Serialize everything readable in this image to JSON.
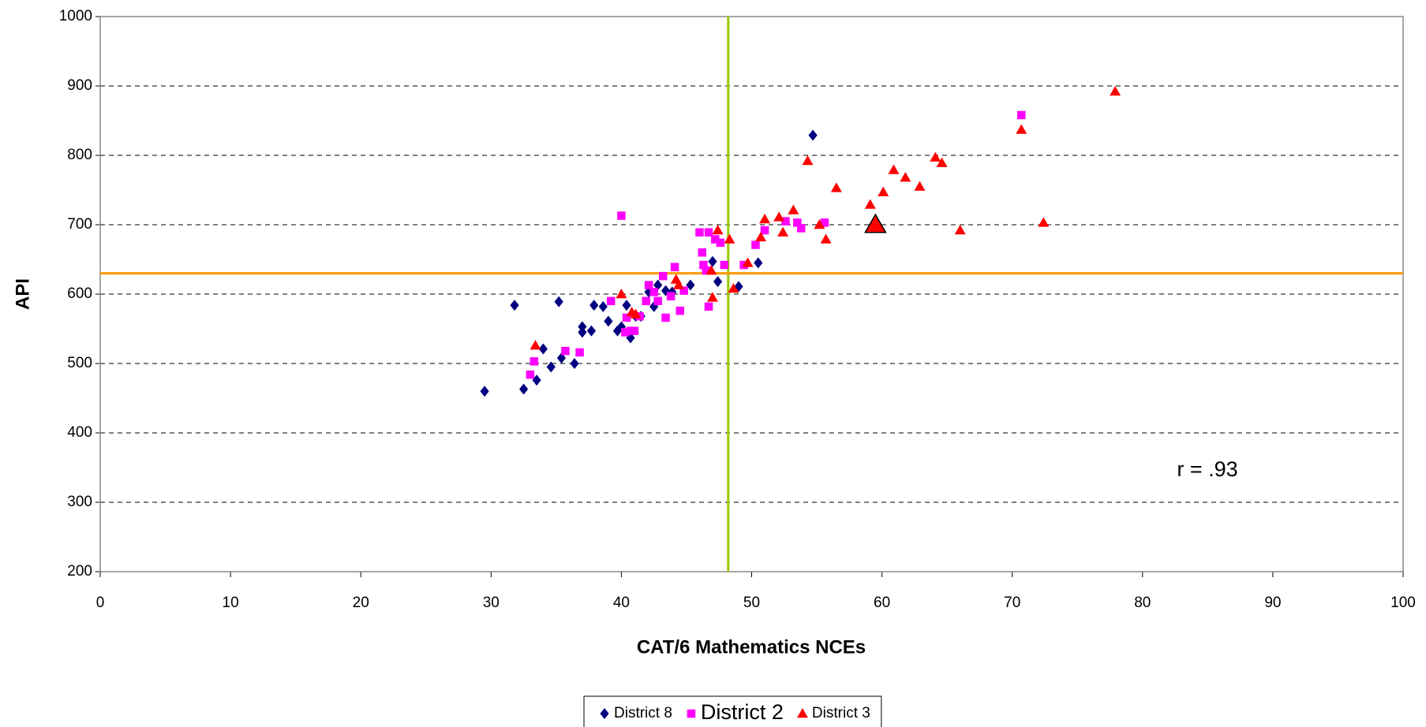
{
  "chart_data": {
    "type": "scatter",
    "xlabel": "CAT/6 Mathematics NCEs",
    "ylabel": "API",
    "annotation": "r = .93",
    "xlim": [
      0,
      100
    ],
    "xticks": [
      0,
      10,
      20,
      30,
      40,
      50,
      60,
      70,
      80,
      90,
      100
    ],
    "ylim": [
      200,
      1000
    ],
    "yticks": [
      200,
      300,
      400,
      500,
      600,
      700,
      800,
      900,
      1000
    ],
    "grid": true,
    "legend": "bottom",
    "reference_lines": {
      "x": 48.2,
      "x_color": "#99cc00",
      "y": 630,
      "y_color": "#ff9900"
    },
    "series": [
      {
        "name": "District 8",
        "marker": "diamond",
        "color": "#000080",
        "x": [
          29.5,
          31.8,
          32.5,
          33.5,
          34.0,
          34.6,
          35.2,
          35.4,
          36.4,
          37.0,
          37.0,
          37.7,
          37.9,
          38.6,
          39.0,
          39.7,
          40.0,
          40.4,
          40.7,
          41.1,
          41.5,
          42.1,
          42.5,
          42.8,
          43.4,
          43.9,
          45.3,
          47.0,
          47.4,
          49.0,
          50.5,
          54.7
        ],
        "values": [
          460,
          584,
          463,
          476,
          521,
          495,
          589,
          508,
          500,
          553,
          545,
          547,
          584,
          582,
          561,
          547,
          553,
          584,
          537,
          568,
          568,
          603,
          582,
          613,
          605,
          603,
          613,
          647,
          618,
          611,
          645,
          829
        ]
      },
      {
        "name": "District 2",
        "marker": "square",
        "color": "#ff00ff",
        "x": [
          33.0,
          33.3,
          35.7,
          36.8,
          39.2,
          40.0,
          40.3,
          40.4,
          40.7,
          41.0,
          41.4,
          41.9,
          42.1,
          42.5,
          42.8,
          43.2,
          43.4,
          43.8,
          44.1,
          44.5,
          44.8,
          46.0,
          46.2,
          46.3,
          46.5,
          46.7,
          46.7,
          47.2,
          47.6,
          47.9,
          49.4,
          50.3,
          51.0,
          52.6,
          53.5,
          53.8,
          55.6,
          70.7
        ],
        "values": [
          484,
          503,
          518,
          516,
          590,
          713,
          545,
          566,
          547,
          547,
          568,
          590,
          613,
          603,
          590,
          626,
          566,
          597,
          639,
          576,
          605,
          689,
          660,
          642,
          634,
          582,
          689,
          679,
          674,
          642,
          642,
          671,
          692,
          705,
          703,
          695,
          703,
          858
        ]
      },
      {
        "name": "District 3",
        "marker": "triangle",
        "color": "#ff0000",
        "x": [
          33.4,
          40.0,
          40.8,
          41.1,
          44.2,
          44.4,
          46.9,
          47.0,
          47.4,
          48.3,
          48.6,
          49.7,
          50.7,
          51.0,
          52.1,
          52.4,
          53.2,
          54.3,
          55.2,
          55.7,
          56.5,
          59.1,
          59.5,
          60.1,
          60.9,
          61.8,
          62.9,
          64.1,
          64.6,
          66.0,
          70.7,
          72.4,
          77.9
        ],
        "values": [
          526,
          600,
          574,
          571,
          621,
          613,
          634,
          595,
          692,
          679,
          608,
          645,
          682,
          708,
          711,
          689,
          721,
          792,
          700,
          679,
          753,
          729,
          700,
          747,
          779,
          768,
          755,
          797,
          789,
          692,
          837,
          703,
          892
        ],
        "highlight": 22
      }
    ]
  }
}
